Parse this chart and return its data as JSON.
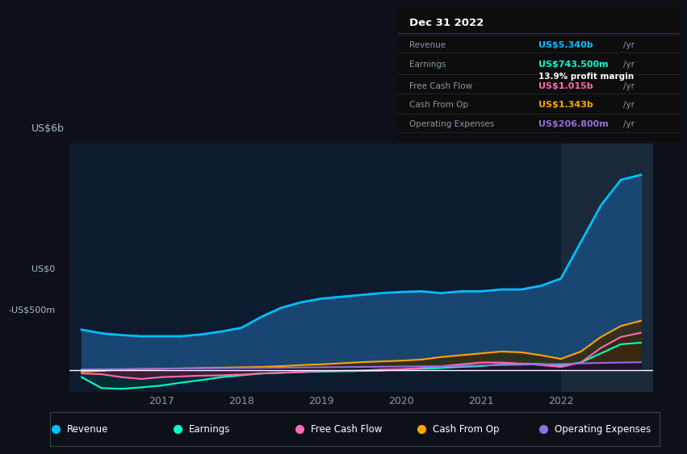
{
  "bg_color": "#0d1117",
  "plot_bg_color": "#0d1b2e",
  "grid_color": "#1e3050",
  "zero_line_color": "#ffffff",
  "ylabel": "US$6b",
  "y0_label": "US$0",
  "yneg_label": "-US$500m",
  "ylim": [
    -600,
    6200
  ],
  "years": [
    2016.0,
    2016.25,
    2016.5,
    2016.75,
    2017.0,
    2017.25,
    2017.5,
    2017.75,
    2018.0,
    2018.25,
    2018.5,
    2018.75,
    2019.0,
    2019.25,
    2019.5,
    2019.75,
    2020.0,
    2020.25,
    2020.5,
    2020.75,
    2021.0,
    2021.25,
    2021.5,
    2021.75,
    2022.0,
    2022.25,
    2022.5,
    2022.75,
    2023.0
  ],
  "revenue": [
    1100,
    1000,
    950,
    920,
    920,
    920,
    970,
    1050,
    1150,
    1450,
    1700,
    1850,
    1950,
    2000,
    2050,
    2100,
    2130,
    2150,
    2100,
    2150,
    2150,
    2200,
    2200,
    2300,
    2500,
    3500,
    4500,
    5200,
    5340
  ],
  "earnings": [
    -200,
    -500,
    -520,
    -480,
    -430,
    -350,
    -280,
    -200,
    -150,
    -100,
    -80,
    -60,
    -50,
    -40,
    -30,
    -20,
    10,
    30,
    50,
    80,
    100,
    150,
    170,
    160,
    120,
    200,
    450,
    700,
    743
  ],
  "free_cash_flow": [
    -100,
    -120,
    -200,
    -250,
    -200,
    -180,
    -160,
    -150,
    -130,
    -100,
    -80,
    -60,
    -40,
    -30,
    -20,
    10,
    20,
    50,
    100,
    150,
    200,
    200,
    170,
    130,
    80,
    200,
    600,
    900,
    1015
  ],
  "cash_from_op": [
    -50,
    -30,
    10,
    20,
    30,
    40,
    50,
    60,
    70,
    80,
    100,
    130,
    150,
    180,
    210,
    230,
    250,
    280,
    350,
    400,
    450,
    500,
    480,
    400,
    300,
    500,
    900,
    1200,
    1343
  ],
  "operating_expenses": [
    10,
    15,
    20,
    25,
    30,
    35,
    40,
    45,
    50,
    55,
    60,
    65,
    70,
    75,
    80,
    85,
    90,
    95,
    100,
    110,
    120,
    130,
    140,
    150,
    160,
    175,
    190,
    200,
    207
  ],
  "revenue_color": "#00bfff",
  "earnings_color": "#00ffcc",
  "fcf_color": "#ff69b4",
  "cashop_color": "#ffa500",
  "opex_color": "#9370db",
  "revenue_fill": "#1a4a7a",
  "earnings_fill": "#003333",
  "fcf_fill": "#4a1a3a",
  "cashop_fill": "#3a2a00",
  "opex_fill": "#1a0a3a",
  "info_title": "Dec 31 2022",
  "info_rows": [
    {
      "label": "Revenue",
      "value": "US$5.340b",
      "value_color": "#00bfff",
      "sub": ""
    },
    {
      "label": "Earnings",
      "value": "US$743.500m",
      "value_color": "#00ffcc",
      "sub": "13.9% profit margin"
    },
    {
      "label": "Free Cash Flow",
      "value": "US$1.015b",
      "value_color": "#ff69b4",
      "sub": ""
    },
    {
      "label": "Cash From Op",
      "value": "US$1.343b",
      "value_color": "#ffa500",
      "sub": ""
    },
    {
      "label": "Operating Expenses",
      "value": "US$206.800m",
      "value_color": "#9370db",
      "sub": ""
    }
  ],
  "legend_items": [
    {
      "label": "Revenue",
      "color": "#00bfff"
    },
    {
      "label": "Earnings",
      "color": "#00ffcc"
    },
    {
      "label": "Free Cash Flow",
      "color": "#ff69b4"
    },
    {
      "label": "Cash From Op",
      "color": "#ffa500"
    },
    {
      "label": "Operating Expenses",
      "color": "#9370db"
    }
  ],
  "xlim": [
    2015.85,
    2023.15
  ],
  "xtick_positions": [
    2017,
    2018,
    2019,
    2020,
    2021,
    2022
  ],
  "xtick_labels": [
    "2017",
    "2018",
    "2019",
    "2020",
    "2021",
    "2022"
  ],
  "highlight_x_start": 2022.0,
  "highlight_x_end": 2023.15
}
